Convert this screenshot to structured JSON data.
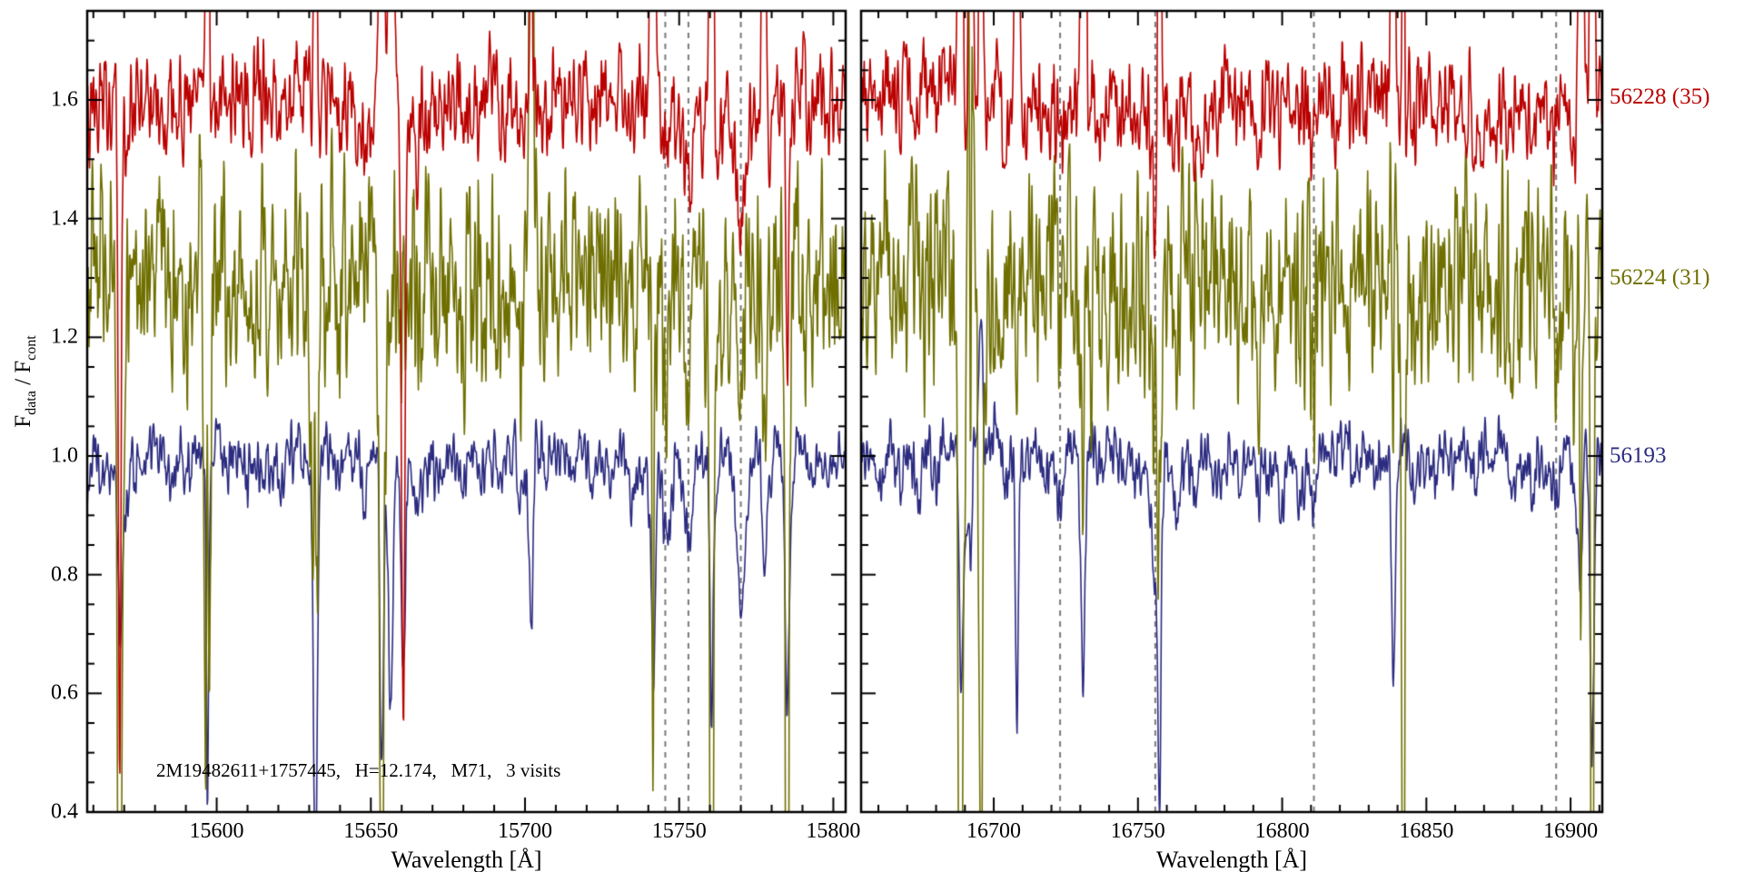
{
  "figure": {
    "background": "#ffffff",
    "ylabel_f": "F",
    "ylabel_sub1": "data",
    "ylabel_mid": " / F",
    "ylabel_sub2": "cont",
    "annotation": "2M19482611+1757445,   H=12.174,   M71,   3 visits"
  },
  "chart_data": {
    "type": "line",
    "title": "",
    "ylabel": "F_data / F_cont",
    "ylim": [
      0.4,
      1.75
    ],
    "yticks": [
      "0.4",
      "0.6",
      "0.8",
      "1.0",
      "1.2",
      "1.4",
      "1.6"
    ],
    "ytick_values": [
      0.4,
      0.6,
      0.8,
      1.0,
      1.2,
      1.4,
      1.6
    ],
    "y_minor_step": 0.05,
    "axis_color": "#000000",
    "dashed_line_color": "#7a7a7a",
    "legend_position": "right-outside",
    "grid": false,
    "series": [
      {
        "name": "56193",
        "color": "#2b2b80",
        "offset": 0.0,
        "baseline": 1.0,
        "noise": 0.018,
        "line_scale": 1.0,
        "label_y": 1.0,
        "seed": 11,
        "spike": {
          "min": 0.15,
          "max": 0.55,
          "up_prob": 0.12,
          "both_prob": 0.05
        }
      },
      {
        "name": "56224 (31)",
        "color": "#6f6f00",
        "offset": 0.3,
        "baseline": 1.3,
        "noise": 0.065,
        "line_scale": 1.0,
        "label_y": 1.3,
        "seed": 22,
        "spike": {
          "min": 0.9,
          "max": 2.4,
          "up_prob": 0.12,
          "both_prob": 0.35
        }
      },
      {
        "name": "56228 (35)",
        "color": "#bb0000",
        "offset": 0.6,
        "baseline": 1.6,
        "noise": 0.03,
        "line_scale": 0.85,
        "label_y": 1.605,
        "seed": 33,
        "spike": {
          "min": 0.8,
          "max": 2.0,
          "up_prob": 0.78,
          "both_prob": 0.3
        }
      }
    ],
    "panels": [
      {
        "xlabel": "Wavelength [Å]",
        "xlim": [
          15558,
          15804
        ],
        "xticks": [
          15600,
          15650,
          15700,
          15750,
          15800
        ],
        "x_minor_step": 10,
        "dashed_lines": [
          15745.5,
          15753,
          15770
        ],
        "absorption_lines": [
          [
            15570,
            0.1,
            1.0
          ],
          [
            15585,
            0.05,
            1.2
          ],
          [
            15590,
            0.04,
            0.8
          ],
          [
            15597,
            0.09,
            0.9
          ],
          [
            15604,
            0.04,
            0.8
          ],
          [
            15610,
            0.05,
            1.0
          ],
          [
            15617,
            0.04,
            0.8
          ],
          [
            15621,
            0.06,
            1.0
          ],
          [
            15632,
            0.13,
            1.1
          ],
          [
            15640,
            0.04,
            0.9
          ],
          [
            15648,
            0.07,
            1.0
          ],
          [
            15655,
            0.05,
            0.9
          ],
          [
            15665,
            0.06,
            1.0
          ],
          [
            15673,
            0.05,
            0.9
          ],
          [
            15680,
            0.04,
            0.9
          ],
          [
            15686,
            0.05,
            1.0
          ],
          [
            15692,
            0.05,
            0.9
          ],
          [
            15699,
            0.11,
            1.2
          ],
          [
            15707,
            0.05,
            0.9
          ],
          [
            15715,
            0.04,
            0.9
          ],
          [
            15722,
            0.06,
            1.0
          ],
          [
            15728,
            0.04,
            0.8
          ],
          [
            15735,
            0.05,
            0.9
          ],
          [
            15742,
            0.06,
            1.0
          ],
          [
            15746,
            0.12,
            1.1
          ],
          [
            15753,
            0.16,
            1.2
          ],
          [
            15762,
            0.06,
            1.0
          ],
          [
            15770,
            0.24,
            1.6
          ],
          [
            15778,
            0.07,
            1.0
          ],
          [
            15786,
            0.06,
            1.0
          ],
          [
            15793,
            0.05,
            0.9
          ],
          [
            15798,
            0.06,
            0.9
          ]
        ],
        "spikes": [
          15568.5,
          15597,
          15632,
          15653.5,
          15656.5,
          15660.5,
          15702,
          15741.5,
          15760.5,
          15777.5,
          15785
        ]
      },
      {
        "xlabel": "Wavelength [Å]",
        "xlim": [
          16654,
          16911
        ],
        "xticks": [
          16700,
          16750,
          16800,
          16850,
          16900
        ],
        "x_minor_step": 10,
        "dashed_lines": [
          16723,
          16756,
          16811,
          16895
        ],
        "absorption_lines": [
          [
            16660,
            0.05,
            0.9
          ],
          [
            16667,
            0.04,
            0.9
          ],
          [
            16674,
            0.05,
            1.0
          ],
          [
            16680,
            0.04,
            0.8
          ],
          [
            16690,
            0.2,
            0.9
          ],
          [
            16697,
            0.05,
            0.9
          ],
          [
            16704,
            0.06,
            1.0
          ],
          [
            16711,
            0.04,
            0.9
          ],
          [
            16718,
            0.05,
            0.9
          ],
          [
            16723,
            0.09,
            1.0
          ],
          [
            16730,
            0.05,
            0.9
          ],
          [
            16738,
            0.04,
            0.9
          ],
          [
            16745,
            0.06,
            1.0
          ],
          [
            16750,
            0.05,
            0.9
          ],
          [
            16756,
            0.2,
            1.3
          ],
          [
            16763,
            0.08,
            1.0
          ],
          [
            16770,
            0.05,
            0.9
          ],
          [
            16778,
            0.06,
            1.0
          ],
          [
            16785,
            0.04,
            0.9
          ],
          [
            16792,
            0.05,
            0.9
          ],
          [
            16800,
            0.05,
            1.0
          ],
          [
            16806,
            0.04,
            0.9
          ],
          [
            16811,
            0.07,
            1.0
          ],
          [
            16818,
            0.04,
            0.9
          ],
          [
            16825,
            0.05,
            0.9
          ],
          [
            16832,
            0.04,
            0.9
          ],
          [
            16839,
            0.06,
            1.0
          ],
          [
            16846,
            0.05,
            0.9
          ],
          [
            16853,
            0.05,
            0.9
          ],
          [
            16860,
            0.04,
            0.9
          ],
          [
            16867,
            0.05,
            1.0
          ],
          [
            16873,
            0.04,
            0.9
          ],
          [
            16880,
            0.05,
            0.9
          ],
          [
            16887,
            0.05,
            0.9
          ],
          [
            16895,
            0.07,
            1.0
          ],
          [
            16902,
            0.1,
            1.0
          ]
        ],
        "spikes": [
          16688.5,
          16692,
          16695.5,
          16708,
          16731,
          16757.5,
          16838.5,
          16842,
          16903.5,
          16907.5
        ]
      }
    ]
  }
}
